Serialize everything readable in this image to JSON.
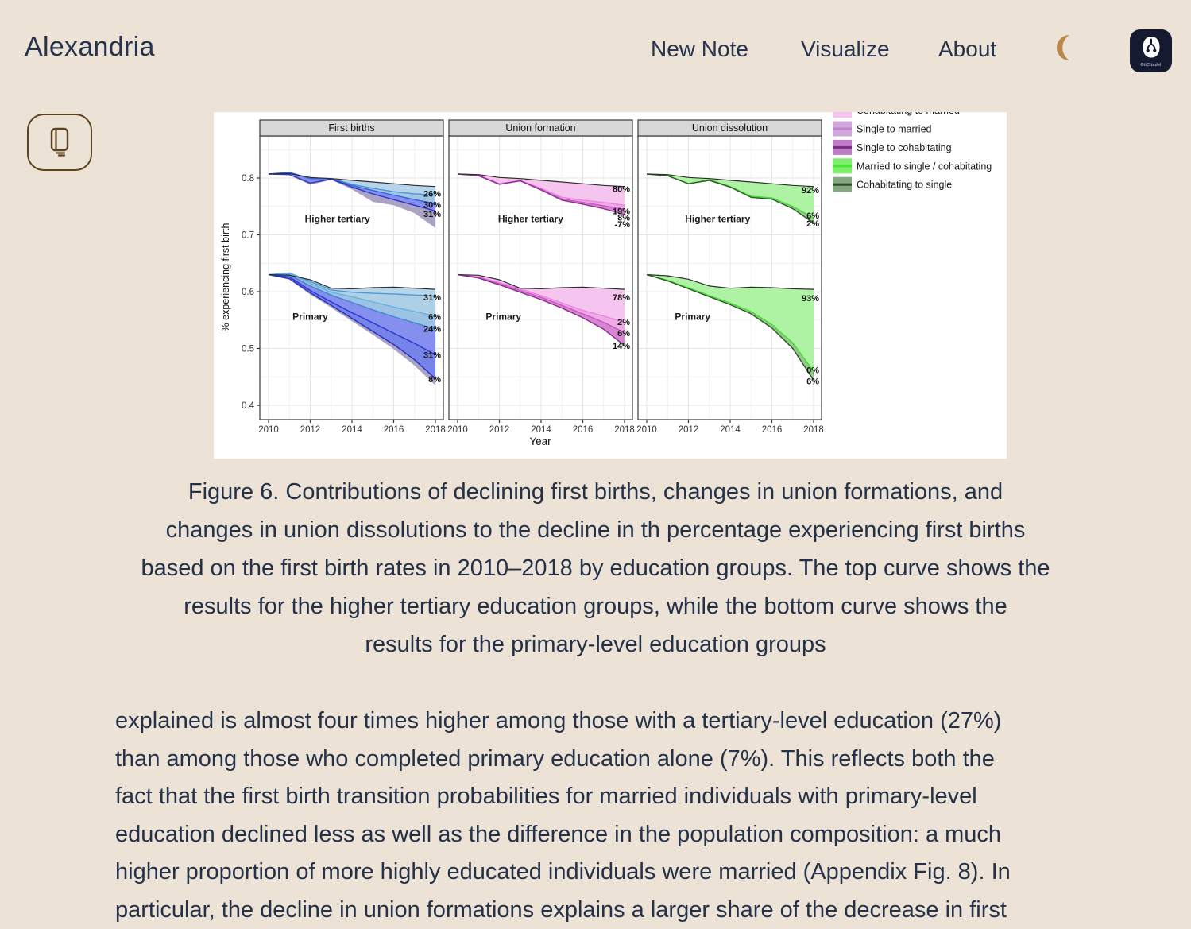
{
  "page": {
    "background": "#ECE3D6",
    "text_color": "#243149",
    "accent_brown": "#5E431F",
    "moon_color": "#B8894B",
    "logo_bg": "#161A30"
  },
  "header": {
    "brand": "Alexandria",
    "nav": [
      {
        "label": "New Note"
      },
      {
        "label": "Visualize"
      },
      {
        "label": "About"
      }
    ],
    "logo_text": "GitCitadel"
  },
  "figure": {
    "caption_lines": [
      "Figure 6. Contributions of declining first births, changes in union formations, and",
      "changes in union dissolutions to the decline in th percentage experiencing first births",
      "based on the first birth rates in 2010–2018 by education groups. The top curve shows the",
      "results for the higher tertiary education groups, while the bottom curve shows the",
      "results for the primary-level education groups"
    ]
  },
  "article": {
    "paragraph_lines": [
      "explained is almost four times higher among those with a tertiary-level education (27%)",
      "than among those who completed primary education alone (7%). This reflects both the",
      "fact that the first birth transition probabilities for married individuals with primary-level",
      "education declined less as well as the difference in the population composition: a much",
      "higher proportion of more highly educated individuals were married (Appendix Fig. 8). In",
      "particular, the decline in union formations explains a larger share of the decrease in first"
    ]
  },
  "chart_data": {
    "type": "line",
    "x": [
      2010,
      2011,
      2012,
      2013,
      2014,
      2015,
      2016,
      2017,
      2018
    ],
    "xticks": [
      2010,
      2012,
      2014,
      2016,
      2018
    ],
    "yticks": [
      0.4,
      0.5,
      0.6,
      0.7,
      0.8
    ],
    "ylim": [
      0.375,
      0.875
    ],
    "xlabel": "Year",
    "ylabel": "% experiencing first birth",
    "legend_position": "top-right, first entry clipped by image edge",
    "legend": [
      {
        "label": "Cohabitating to married",
        "fill": "#F6C4F0",
        "line": "#EE8FE0"
      },
      {
        "label": "Single to married",
        "fill": "#CFA7DA",
        "line": "#BD84CB"
      },
      {
        "label": "Single to cohabitating",
        "fill": "#BD7CC4",
        "line": "#7E2A8A"
      },
      {
        "label": "Married to single / cohabitating",
        "fill": "#7FEE6D",
        "line": "#45E532"
      },
      {
        "label": "Cohabitating to single",
        "fill": "#85A882",
        "line": "#2C4C28"
      }
    ],
    "panels": [
      {
        "title": "First births",
        "groups": [
          {
            "name": "Higher tertiary",
            "name_year": 2013.3,
            "name_v": 0.728,
            "observed": {
              "label": "",
              "label_v": 0,
              "values": [
                0.807,
                0.808,
                0.801,
                0.799,
                0.796,
                0.793,
                0.79,
                0.787,
                0.785
              ]
            },
            "curves": [
              {
                "label": "26%",
                "label_v": 0.773,
                "stroke": "#4E97D0",
                "fill": "#B3D3E9",
                "values": [
                  0.807,
                  0.809,
                  0.8,
                  0.799,
                  0.789,
                  0.782,
                  0.776,
                  0.772,
                  0.77
                ]
              },
              {
                "label": "30%",
                "label_v": 0.753,
                "stroke": "#2F66D8",
                "fill": "#9CC4E4",
                "values": [
                  0.807,
                  0.81,
                  0.799,
                  0.799,
                  0.787,
                  0.778,
                  0.77,
                  0.762,
                  0.755
                ]
              },
              {
                "label": "31%",
                "label_v": 0.737,
                "stroke": "#2B35CC",
                "fill": "#7E89EC",
                "values": [
                  0.807,
                  0.806,
                  0.791,
                  0.798,
                  0.784,
                  0.772,
                  0.762,
                  0.752,
                  0.742
                ]
              },
              {
                "label": "",
                "label_v": 0,
                "stroke": "none",
                "fill": "#A79EC2",
                "values": [
                  0.807,
                  0.805,
                  0.788,
                  0.797,
                  0.78,
                  0.758,
                  0.752,
                  0.738,
                  0.712
                ]
              }
            ]
          },
          {
            "name": "Primary",
            "name_year": 2012.0,
            "name_v": 0.556,
            "observed": {
              "label": "",
              "label_v": 0,
              "values": [
                0.63,
                0.629,
                0.621,
                0.606,
                0.605,
                0.607,
                0.608,
                0.606,
                0.604
              ]
            },
            "curves": [
              {
                "label": "31%",
                "label_v": 0.59,
                "stroke": "#4E97D0",
                "fill": "#B3D3E9",
                "values": [
                  0.63,
                  0.633,
                  0.618,
                  0.603,
                  0.599,
                  0.597,
                  0.596,
                  0.594,
                  0.592
                ]
              },
              {
                "label": "6%",
                "label_v": 0.556,
                "stroke": "#6AB0DC",
                "fill": "#A9CDE6",
                "values": [
                  0.63,
                  0.632,
                  0.615,
                  0.599,
                  0.591,
                  0.582,
                  0.573,
                  0.565,
                  0.557
                ]
              },
              {
                "label": "24%",
                "label_v": 0.535,
                "stroke": "#3F86CC",
                "fill": "#97C0E2",
                "values": [
                  0.63,
                  0.63,
                  0.61,
                  0.594,
                  0.581,
                  0.568,
                  0.556,
                  0.545,
                  0.534
                ]
              },
              {
                "label": "31%",
                "label_v": 0.489,
                "stroke": "#2B35CC",
                "fill": "#7E89EC",
                "values": [
                  0.63,
                  0.626,
                  0.602,
                  0.582,
                  0.563,
                  0.545,
                  0.527,
                  0.509,
                  0.489
                ]
              },
              {
                "label": "8%",
                "label_v": 0.446,
                "stroke": "#2330C0",
                "fill": "#6F7CE8",
                "values": [
                  0.63,
                  0.623,
                  0.598,
                  0.576,
                  0.553,
                  0.53,
                  0.507,
                  0.48,
                  0.447
                ]
              },
              {
                "label": "",
                "label_v": 0,
                "stroke": "none",
                "fill": "#A79EC2",
                "values": [
                  0.63,
                  0.621,
                  0.595,
                  0.572,
                  0.548,
                  0.524,
                  0.499,
                  0.47,
                  0.435
                ]
              }
            ]
          }
        ]
      },
      {
        "title": "Union formation",
        "groups": [
          {
            "name": "Higher tertiary",
            "name_year": 2013.5,
            "name_v": 0.728,
            "observed": {
              "label": "80%",
              "label_v": 0.781,
              "values": [
                0.807,
                0.806,
                0.801,
                0.799,
                0.796,
                0.793,
                0.79,
                0.787,
                0.785
              ]
            },
            "curves": [
              {
                "label": "19%",
                "label_v": 0.742,
                "stroke": "#E985DC",
                "fill": "#F5C2EE",
                "values": [
                  0.807,
                  0.805,
                  0.79,
                  0.796,
                  0.782,
                  0.766,
                  0.761,
                  0.757,
                  0.752
                ]
              },
              {
                "label": "8%",
                "label_v": 0.731,
                "stroke": "#CC55C4",
                "fill": "#EDA6E4",
                "values": [
                  0.807,
                  0.805,
                  0.789,
                  0.795,
                  0.78,
                  0.763,
                  0.757,
                  0.751,
                  0.745
                ]
              },
              {
                "label": "-7%",
                "label_v": 0.719,
                "stroke": "#8C2D96",
                "fill": "#D67FCE",
                "values": [
                  0.807,
                  0.804,
                  0.789,
                  0.795,
                  0.779,
                  0.761,
                  0.754,
                  0.746,
                  0.736
                ]
              }
            ]
          },
          {
            "name": "Primary",
            "name_year": 2012.2,
            "name_v": 0.556,
            "observed": {
              "label": "78%",
              "label_v": 0.59,
              "values": [
                0.63,
                0.629,
                0.621,
                0.606,
                0.605,
                0.607,
                0.608,
                0.606,
                0.604
              ]
            },
            "curves": [
              {
                "label": "2%",
                "label_v": 0.547,
                "stroke": "#E985DC",
                "fill": "#F5C2EE",
                "values": [
                  0.63,
                  0.626,
                  0.616,
                  0.605,
                  0.593,
                  0.58,
                  0.567,
                  0.557,
                  0.546
                ]
              },
              {
                "label": "6%",
                "label_v": 0.527,
                "stroke": "#CC55C4",
                "fill": "#EDA6E4",
                "values": [
                  0.63,
                  0.625,
                  0.614,
                  0.602,
                  0.59,
                  0.576,
                  0.561,
                  0.546,
                  0.528
                ]
              },
              {
                "label": "14%",
                "label_v": 0.505,
                "stroke": "#8C2D96",
                "fill": "#D67FCE",
                "values": [
                  0.63,
                  0.624,
                  0.612,
                  0.599,
                  0.586,
                  0.571,
                  0.554,
                  0.534,
                  0.505
                ]
              }
            ]
          }
        ]
      },
      {
        "title": "Union dissolution",
        "groups": [
          {
            "name": "Higher tertiary",
            "name_year": 2013.4,
            "name_v": 0.728,
            "observed": {
              "label": "92%",
              "label_v": 0.779,
              "values": [
                0.807,
                0.806,
                0.801,
                0.799,
                0.796,
                0.793,
                0.79,
                0.787,
                0.785
              ]
            },
            "curves": [
              {
                "label": "6%",
                "label_v": 0.734,
                "stroke": "#46DF33",
                "fill": "#AAF19E",
                "values": [
                  0.807,
                  0.804,
                  0.79,
                  0.797,
                  0.785,
                  0.768,
                  0.765,
                  0.75,
                  0.73
                ]
              },
              {
                "label": "2%",
                "label_v": 0.72,
                "stroke": "#2D5A28",
                "fill": "#8FC487",
                "values": [
                  0.807,
                  0.804,
                  0.79,
                  0.796,
                  0.784,
                  0.766,
                  0.763,
                  0.746,
                  0.721
                ]
              }
            ]
          },
          {
            "name": "Primary",
            "name_year": 2012.2,
            "name_v": 0.556,
            "observed": {
              "label": "93%",
              "label_v": 0.589,
              "values": [
                0.63,
                0.628,
                0.622,
                0.61,
                0.606,
                0.608,
                0.607,
                0.605,
                0.604
              ]
            },
            "curves": [
              {
                "label": "0%",
                "label_v": 0.462,
                "stroke": "#46DF33",
                "fill": "#AAF19E",
                "values": [
                  0.63,
                  0.62,
                  0.607,
                  0.593,
                  0.58,
                  0.565,
                  0.542,
                  0.51,
                  0.46
                ]
              },
              {
                "label": "6%",
                "label_v": 0.443,
                "stroke": "#2D5A28",
                "fill": "#8FC487",
                "values": [
                  0.63,
                  0.619,
                  0.605,
                  0.591,
                  0.577,
                  0.561,
                  0.536,
                  0.5,
                  0.444
                ]
              }
            ]
          }
        ]
      }
    ]
  }
}
